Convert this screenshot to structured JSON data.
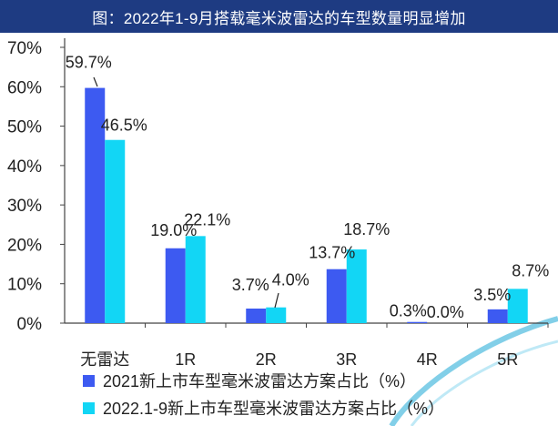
{
  "title": "图：2022年1-9月搭载毫米波雷达的车型数量明显增加",
  "colors": {
    "title_bg": "#1e3b82",
    "series1": "#3d5af1",
    "series2": "#12d6f5"
  },
  "chart_data": {
    "type": "bar",
    "title": "图：2022年1-9月搭载毫米波雷达的车型数量明显增加",
    "categories": [
      "无雷达",
      "1R",
      "2R",
      "3R",
      "4R",
      "5R"
    ],
    "ylim": [
      0,
      70
    ],
    "yticks": [
      "0%",
      "10%",
      "20%",
      "30%",
      "40%",
      "50%",
      "60%",
      "70%"
    ],
    "grid": false,
    "legend_position": "bottom",
    "series": [
      {
        "name": "2021新上市车型毫米波雷达方案占比（%）",
        "values": [
          59.7,
          19.0,
          3.7,
          13.7,
          0.3,
          3.5
        ],
        "labels": [
          "59.7%",
          "19.0%",
          "3.7%",
          "13.7%",
          "0.3%",
          "3.5%"
        ]
      },
      {
        "name": "2022.1-9新上市车型毫米波雷达方案占比（%）",
        "values": [
          46.5,
          22.1,
          4.0,
          18.7,
          0.0,
          8.7
        ],
        "labels": [
          "46.5%",
          "22.1%",
          "4.0%",
          "18.7%",
          "0.0%",
          "8.7%"
        ]
      }
    ]
  }
}
